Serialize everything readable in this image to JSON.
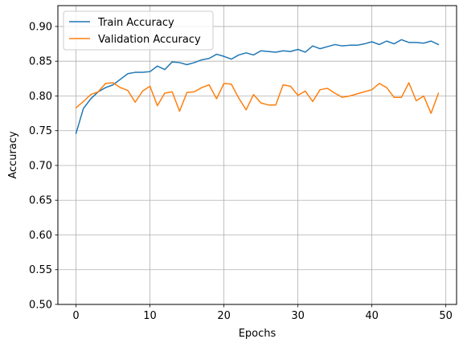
{
  "chart_data": {
    "type": "line",
    "title": "",
    "xlabel": "Epochs",
    "ylabel": "Accuracy",
    "xlim": [
      -2.45,
      51.45
    ],
    "ylim": [
      0.5,
      0.93
    ],
    "grid": true,
    "legend_position": "upper-left",
    "x": [
      0,
      1,
      2,
      3,
      4,
      5,
      6,
      7,
      8,
      9,
      10,
      11,
      12,
      13,
      14,
      15,
      16,
      17,
      18,
      19,
      20,
      21,
      22,
      23,
      24,
      25,
      26,
      27,
      28,
      29,
      30,
      31,
      32,
      33,
      34,
      35,
      36,
      37,
      38,
      39,
      40,
      41,
      42,
      43,
      44,
      45,
      46,
      47,
      48,
      49
    ],
    "xticks": [
      0,
      10,
      20,
      30,
      40,
      50
    ],
    "xtick_labels": [
      "0",
      "10",
      "20",
      "30",
      "40",
      "50"
    ],
    "yticks": [
      0.5,
      0.55,
      0.6,
      0.65,
      0.7,
      0.75,
      0.8,
      0.85,
      0.9
    ],
    "ytick_labels": [
      "0.50",
      "0.55",
      "0.60",
      "0.65",
      "0.70",
      "0.75",
      "0.80",
      "0.85",
      "0.90"
    ],
    "series": [
      {
        "name": "Train Accuracy",
        "color": "#1f77b4",
        "values": [
          0.746,
          0.782,
          0.796,
          0.806,
          0.812,
          0.816,
          0.824,
          0.832,
          0.834,
          0.834,
          0.835,
          0.843,
          0.838,
          0.849,
          0.848,
          0.845,
          0.848,
          0.852,
          0.854,
          0.86,
          0.857,
          0.853,
          0.859,
          0.862,
          0.859,
          0.865,
          0.864,
          0.863,
          0.865,
          0.864,
          0.867,
          0.863,
          0.872,
          0.868,
          0.871,
          0.874,
          0.872,
          0.873,
          0.873,
          0.875,
          0.878,
          0.874,
          0.879,
          0.875,
          0.881,
          0.877,
          0.877,
          0.876,
          0.879,
          0.874
        ]
      },
      {
        "name": "Validation Accuracy",
        "color": "#ff7f0e",
        "values": [
          0.783,
          0.792,
          0.802,
          0.806,
          0.818,
          0.819,
          0.812,
          0.808,
          0.791,
          0.807,
          0.814,
          0.786,
          0.804,
          0.806,
          0.778,
          0.805,
          0.806,
          0.812,
          0.816,
          0.796,
          0.818,
          0.817,
          0.797,
          0.78,
          0.802,
          0.79,
          0.787,
          0.787,
          0.816,
          0.814,
          0.801,
          0.807,
          0.792,
          0.809,
          0.811,
          0.804,
          0.798,
          0.8,
          0.803,
          0.806,
          0.809,
          0.818,
          0.812,
          0.798,
          0.798,
          0.819,
          0.793,
          0.8,
          0.775,
          0.804
        ]
      }
    ]
  }
}
